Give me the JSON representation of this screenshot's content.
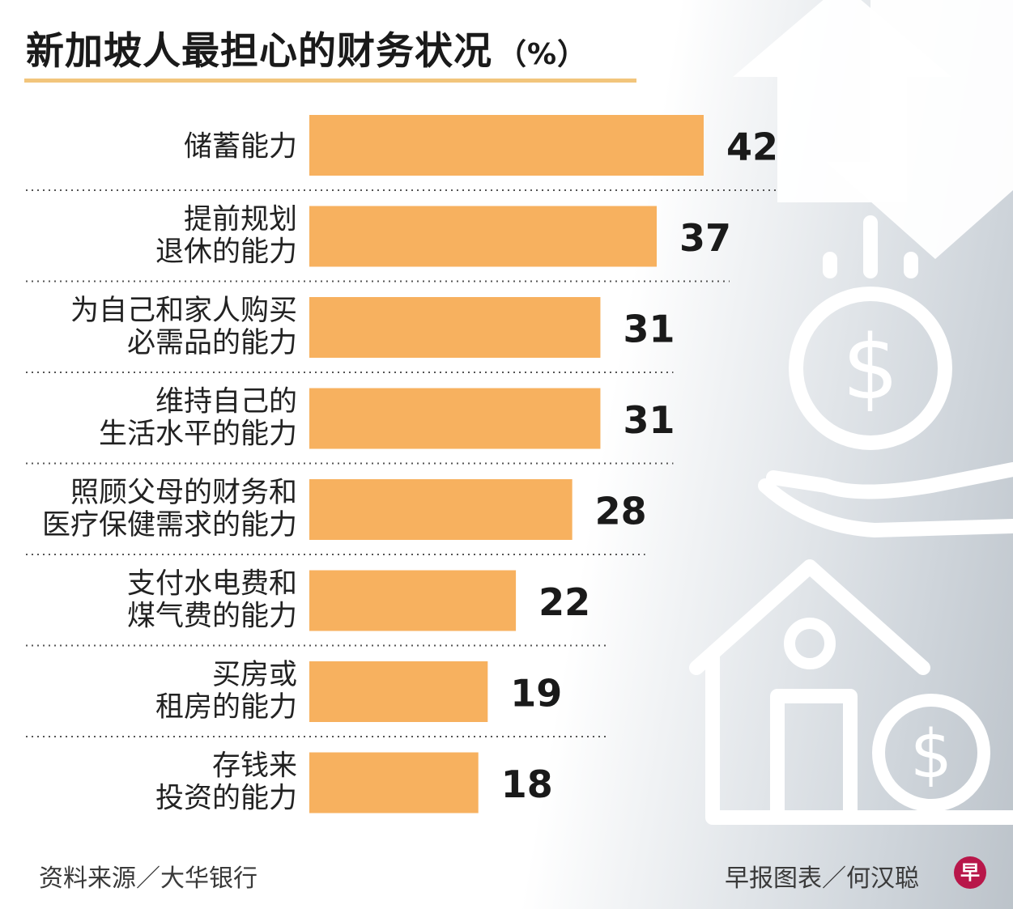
{
  "title": "新加坡人最担心的财务状况",
  "title_unit": "（%）",
  "colors": {
    "bar": "#f7b15f",
    "title_rule": "#f2c57c",
    "logo": "#b8174a"
  },
  "icons": [
    "arrow-up-icon",
    "arrow-down-icon",
    "dollar-coin-icon",
    "open-hand-icon",
    "house-icon",
    "house-dollar-coin-icon"
  ],
  "chart_data": {
    "type": "bar",
    "orientation": "horizontal",
    "title": "新加坡人最担心的财务状况（%）",
    "unit": "%",
    "xlim": [
      0,
      42
    ],
    "categories": [
      [
        "储蓄能力"
      ],
      [
        "提前规划",
        "退休的能力"
      ],
      [
        "为自己和家人购买",
        "必需品的能力"
      ],
      [
        "维持自己的",
        "生活水平的能力"
      ],
      [
        "照顾父母的财务和",
        "医疗保健需求的能力"
      ],
      [
        "支付水电费和",
        "煤气费的能力"
      ],
      [
        "买房或",
        "租房的能力"
      ],
      [
        "存钱来",
        "投资的能力"
      ]
    ],
    "values": [
      42,
      37,
      31,
      31,
      28,
      22,
      19,
      18
    ]
  },
  "footer": {
    "source": "资料来源／大华银行",
    "credit": "早报图表／何汉聪",
    "logo_text": "早"
  }
}
